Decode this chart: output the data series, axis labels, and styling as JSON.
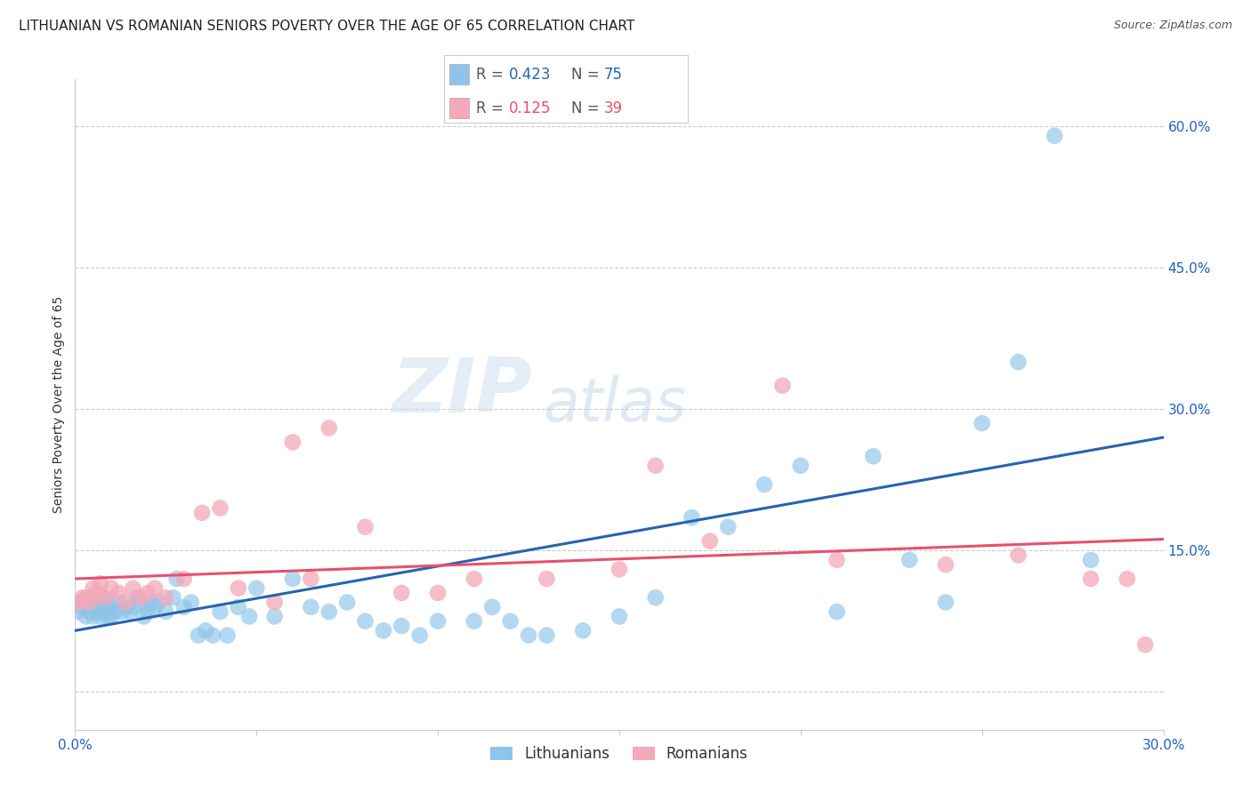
{
  "title": "LITHUANIAN VS ROMANIAN SENIORS POVERTY OVER THE AGE OF 65 CORRELATION CHART",
  "source": "Source: ZipAtlas.com",
  "ylabel": "Seniors Poverty Over the Age of 65",
  "xlim": [
    0.0,
    0.3
  ],
  "ylim": [
    -0.04,
    0.65
  ],
  "yticks": [
    0.0,
    0.15,
    0.3,
    0.45,
    0.6
  ],
  "xticks": [
    0.0,
    0.05,
    0.1,
    0.15,
    0.2,
    0.25,
    0.3
  ],
  "xtick_labels": [
    "0.0%",
    "",
    "",
    "",
    "",
    "",
    "30.0%"
  ],
  "ytick_labels_right": [
    "",
    "15.0%",
    "30.0%",
    "45.0%",
    "60.0%"
  ],
  "title_fontsize": 11,
  "axis_label_fontsize": 10,
  "tick_fontsize": 11,
  "background_color": "#ffffff",
  "grid_color": "#cccccc",
  "blue_color": "#8EC4EA",
  "pink_color": "#F4A8B8",
  "blue_line_color": "#2565AE",
  "pink_line_color": "#E8506A",
  "watermark_zip": "ZIP",
  "watermark_atlas": "atlas",
  "legend_r_blue": "0.423",
  "legend_n_blue": "75",
  "legend_r_pink": "0.125",
  "legend_n_pink": "39",
  "lit_x": [
    0.001,
    0.002,
    0.002,
    0.003,
    0.003,
    0.004,
    0.004,
    0.005,
    0.005,
    0.006,
    0.006,
    0.007,
    0.007,
    0.008,
    0.008,
    0.009,
    0.009,
    0.01,
    0.01,
    0.011,
    0.012,
    0.013,
    0.014,
    0.015,
    0.016,
    0.017,
    0.018,
    0.019,
    0.02,
    0.021,
    0.022,
    0.023,
    0.025,
    0.027,
    0.028,
    0.03,
    0.032,
    0.034,
    0.036,
    0.038,
    0.04,
    0.042,
    0.045,
    0.048,
    0.05,
    0.055,
    0.06,
    0.065,
    0.07,
    0.075,
    0.08,
    0.085,
    0.09,
    0.095,
    0.1,
    0.11,
    0.115,
    0.12,
    0.125,
    0.13,
    0.14,
    0.15,
    0.16,
    0.17,
    0.18,
    0.19,
    0.2,
    0.21,
    0.22,
    0.23,
    0.24,
    0.25,
    0.26,
    0.27,
    0.28
  ],
  "lit_y": [
    0.085,
    0.09,
    0.095,
    0.08,
    0.095,
    0.085,
    0.1,
    0.08,
    0.09,
    0.085,
    0.095,
    0.08,
    0.095,
    0.085,
    0.1,
    0.08,
    0.09,
    0.08,
    0.09,
    0.085,
    0.095,
    0.085,
    0.09,
    0.085,
    0.09,
    0.1,
    0.095,
    0.08,
    0.085,
    0.095,
    0.09,
    0.095,
    0.085,
    0.1,
    0.12,
    0.09,
    0.095,
    0.06,
    0.065,
    0.06,
    0.085,
    0.06,
    0.09,
    0.08,
    0.11,
    0.08,
    0.12,
    0.09,
    0.085,
    0.095,
    0.075,
    0.065,
    0.07,
    0.06,
    0.075,
    0.075,
    0.09,
    0.075,
    0.06,
    0.06,
    0.065,
    0.08,
    0.1,
    0.185,
    0.175,
    0.22,
    0.24,
    0.085,
    0.25,
    0.14,
    0.095,
    0.285,
    0.35,
    0.59,
    0.14
  ],
  "rom_x": [
    0.001,
    0.002,
    0.003,
    0.004,
    0.005,
    0.006,
    0.007,
    0.008,
    0.01,
    0.012,
    0.014,
    0.016,
    0.018,
    0.02,
    0.022,
    0.025,
    0.03,
    0.035,
    0.04,
    0.045,
    0.055,
    0.06,
    0.065,
    0.07,
    0.08,
    0.09,
    0.1,
    0.11,
    0.13,
    0.15,
    0.16,
    0.175,
    0.195,
    0.21,
    0.24,
    0.26,
    0.28,
    0.29,
    0.295
  ],
  "rom_y": [
    0.095,
    0.1,
    0.1,
    0.095,
    0.11,
    0.105,
    0.115,
    0.1,
    0.11,
    0.105,
    0.095,
    0.11,
    0.1,
    0.105,
    0.11,
    0.1,
    0.12,
    0.19,
    0.195,
    0.11,
    0.095,
    0.265,
    0.12,
    0.28,
    0.175,
    0.105,
    0.105,
    0.12,
    0.12,
    0.13,
    0.24,
    0.16,
    0.325,
    0.14,
    0.135,
    0.145,
    0.12,
    0.12,
    0.05
  ]
}
